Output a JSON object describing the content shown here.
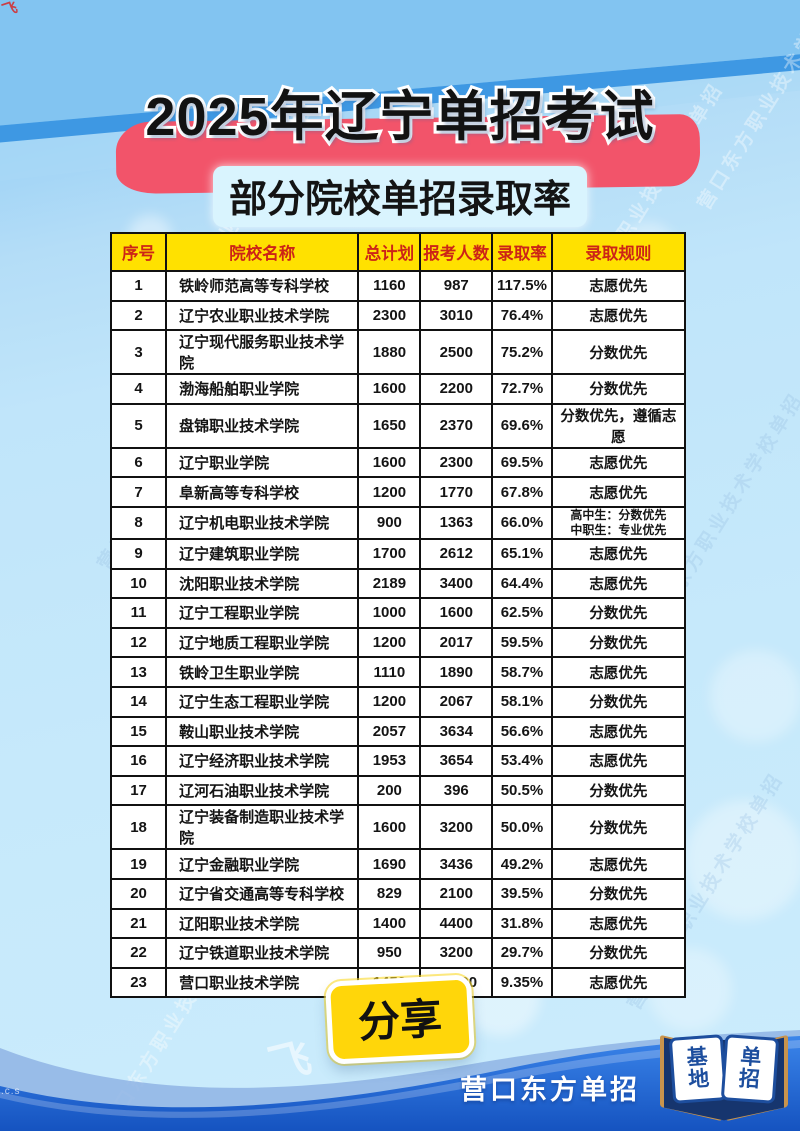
{
  "header": {
    "title": "2025年辽宁单招考试",
    "subtitle": "部分院校单招录取率"
  },
  "chart_data": {
    "type": "table",
    "title": "2025年辽宁单招考试 部分院校单招录取率",
    "columns": [
      "序号",
      "院校名称",
      "总计划",
      "报考人数",
      "录取率",
      "录取规则"
    ],
    "rows": [
      [
        "1",
        "铁岭师范高等专科学校",
        "1160",
        "987",
        "117.5%",
        "志愿优先"
      ],
      [
        "2",
        "辽宁农业职业技术学院",
        "2300",
        "3010",
        "76.4%",
        "志愿优先"
      ],
      [
        "3",
        "辽宁现代服务职业技术学院",
        "1880",
        "2500",
        "75.2%",
        "分数优先"
      ],
      [
        "4",
        "渤海船舶职业学院",
        "1600",
        "2200",
        "72.7%",
        "分数优先"
      ],
      [
        "5",
        "盘锦职业技术学院",
        "1650",
        "2370",
        "69.6%",
        "分数优先，遵循志愿"
      ],
      [
        "6",
        "辽宁职业学院",
        "1600",
        "2300",
        "69.5%",
        "志愿优先"
      ],
      [
        "7",
        "阜新高等专科学校",
        "1200",
        "1770",
        "67.8%",
        "志愿优先"
      ],
      [
        "8",
        "辽宁机电职业技术学院",
        "900",
        "1363",
        "66.0%",
        "高中生：分数优先\n中职生：专业优先"
      ],
      [
        "9",
        "辽宁建筑职业学院",
        "1700",
        "2612",
        "65.1%",
        "志愿优先"
      ],
      [
        "10",
        "沈阳职业技术学院",
        "2189",
        "3400",
        "64.4%",
        "志愿优先"
      ],
      [
        "11",
        "辽宁工程职业学院",
        "1000",
        "1600",
        "62.5%",
        "分数优先"
      ],
      [
        "12",
        "辽宁地质工程职业学院",
        "1200",
        "2017",
        "59.5%",
        "分数优先"
      ],
      [
        "13",
        "铁岭卫生职业学院",
        "1110",
        "1890",
        "58.7%",
        "志愿优先"
      ],
      [
        "14",
        "辽宁生态工程职业学院",
        "1200",
        "2067",
        "58.1%",
        "分数优先"
      ],
      [
        "15",
        "鞍山职业技术学院",
        "2057",
        "3634",
        "56.6%",
        "志愿优先"
      ],
      [
        "16",
        "辽宁经济职业技术学院",
        "1953",
        "3654",
        "53.4%",
        "志愿优先"
      ],
      [
        "17",
        "辽河石油职业技术学院",
        "200",
        "396",
        "50.5%",
        "分数优先"
      ],
      [
        "18",
        "辽宁装备制造职业技术学院",
        "1600",
        "3200",
        "50.0%",
        "分数优先"
      ],
      [
        "19",
        "辽宁金融职业学院",
        "1690",
        "3436",
        "49.2%",
        "志愿优先"
      ],
      [
        "20",
        "辽宁省交通高等专科学校",
        "829",
        "2100",
        "39.5%",
        "分数优先"
      ],
      [
        "21",
        "辽阳职业技术学院",
        "1400",
        "4400",
        "31.8%",
        "志愿优先"
      ],
      [
        "22",
        "辽宁铁道职业技术学院",
        "950",
        "3200",
        "29.7%",
        "分数优先"
      ],
      [
        "23",
        "营口职业技术学院",
        "1450",
        "15500",
        "9.35%",
        "志愿优先"
      ]
    ]
  },
  "footer": {
    "share_label": "分享",
    "brand": "营口东方单招",
    "logo": {
      "left_top": "基",
      "left_bottom": "地",
      "right_top": "单",
      "right_bottom": "招"
    }
  },
  "watermark": {
    "text": "营口东方职业技术学校单招",
    "corner_mark": "飞",
    "swoosh_mark": "飞",
    "small_text": ".c.s"
  },
  "colors": {
    "top_blue": "#82c4f1",
    "streak_blue": "#3e98e3",
    "light_blue": "#c6e9fb",
    "brush_pink": "#f2546a",
    "subtitle_highlight": "#d9f4fe",
    "header_yellow": "#ffe100",
    "header_text_red": "#cc2417",
    "share_yellow": "#ffd60a",
    "wave_blue": "#1f66d6",
    "book_navy": "#16356e",
    "book_gold": "#c9944d",
    "book_text_blue": "#1d4e9e"
  }
}
